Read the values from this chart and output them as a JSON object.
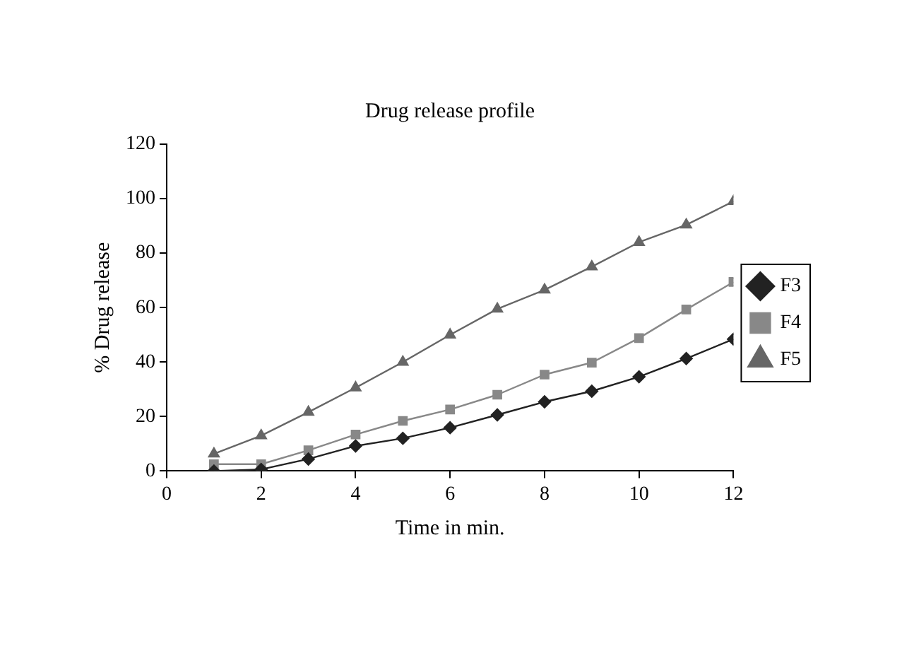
{
  "chart_data": {
    "type": "line",
    "title": "Drug release profile",
    "xlabel": "Time in min.",
    "ylabel": "% Drug release",
    "x": [
      1,
      2,
      3,
      4,
      5,
      6,
      7,
      8,
      9,
      10,
      11,
      12
    ],
    "xlim": [
      0,
      12
    ],
    "xticks": [
      0,
      2,
      4,
      6,
      8,
      10,
      12
    ],
    "ylim": [
      0,
      120
    ],
    "yticks": [
      0,
      20,
      40,
      60,
      80,
      100,
      120
    ],
    "grid": false,
    "legend": "right",
    "series": [
      {
        "name": "F3",
        "color": "#222222",
        "marker": "diamond",
        "values": [
          0,
          0.6,
          4.4,
          9.2,
          12,
          15.9,
          20.6,
          25.4,
          29.3,
          34.6,
          41.3,
          48.4
        ]
      },
      {
        "name": "F4",
        "color": "#888888",
        "marker": "square",
        "values": [
          2.5,
          2.5,
          7.6,
          13.4,
          18.4,
          22.6,
          28,
          35.4,
          39.8,
          48.8,
          59.3,
          69.4
        ]
      },
      {
        "name": "F5",
        "color": "#666666",
        "marker": "triangle",
        "values": [
          6.3,
          13,
          21.6,
          30.6,
          40,
          50,
          59.5,
          66.5,
          75,
          84,
          90.4,
          99
        ]
      }
    ]
  }
}
